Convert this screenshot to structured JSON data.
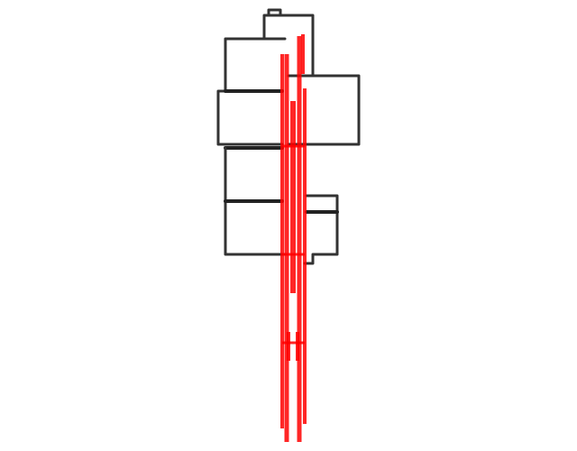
{
  "drawing": {
    "background_color": "#ffffff",
    "outline_color": "#333333",
    "trace_color": "#ff0000"
  }
}
